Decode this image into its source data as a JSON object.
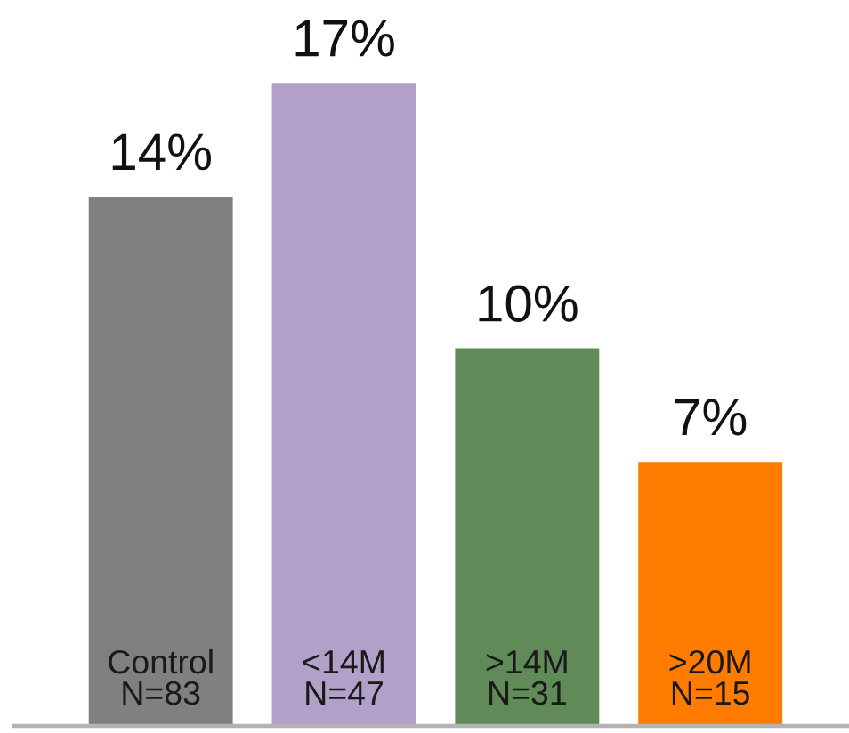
{
  "chart_data": {
    "type": "bar",
    "categories": [
      "Control\nN=83",
      "<14M\nN=47",
      ">14M\nN=31",
      ">20M\nN=15"
    ],
    "values": [
      14,
      17,
      10,
      7
    ],
    "colors": [
      "#808080",
      "#b1a0c7",
      "#608a57",
      "#ff7c00"
    ],
    "value_labels": [
      "14%",
      "17%",
      "10%",
      "7%"
    ]
  }
}
